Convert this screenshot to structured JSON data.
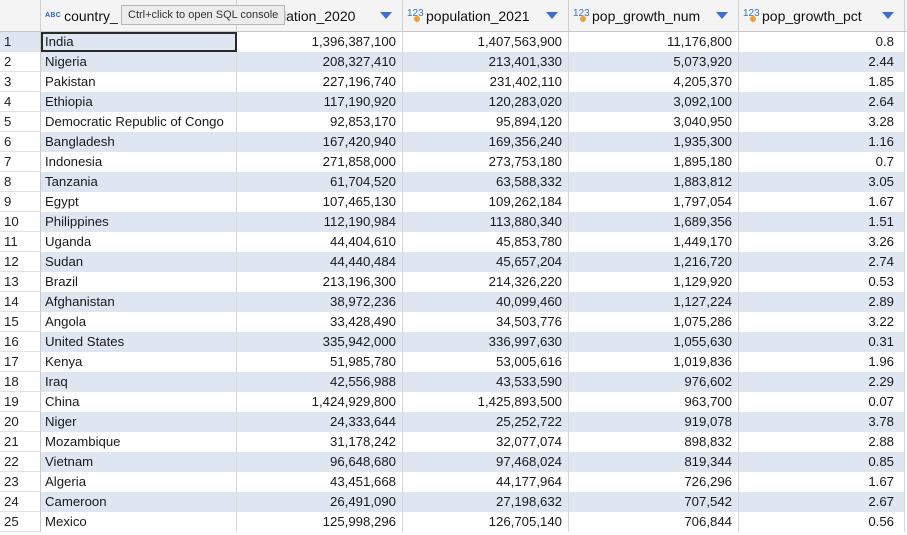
{
  "header": {
    "columns": [
      {
        "name": "country_name",
        "display": "country_",
        "type_badge": "ABC"
      },
      {
        "name": "population_2020",
        "display": "population_2020",
        "type_badge": "123"
      },
      {
        "name": "population_2021",
        "display": "population_2021",
        "type_badge": "123"
      },
      {
        "name": "pop_growth_num",
        "display": "pop_growth_num",
        "type_badge": "123"
      },
      {
        "name": "pop_growth_pct",
        "display": "pop_growth_pct",
        "type_badge": "123"
      }
    ],
    "col2_visible": "lation_2020"
  },
  "tooltip": "Ctrl+click to open SQL console",
  "rows": [
    {
      "n": "1",
      "country": "India",
      "p20": "1,396,387,100",
      "p21": "1,407,563,900",
      "gnum": "11,176,800",
      "gpct": "0.8"
    },
    {
      "n": "2",
      "country": "Nigeria",
      "p20": "208,327,410",
      "p21": "213,401,330",
      "gnum": "5,073,920",
      "gpct": "2.44"
    },
    {
      "n": "3",
      "country": "Pakistan",
      "p20": "227,196,740",
      "p21": "231,402,110",
      "gnum": "4,205,370",
      "gpct": "1.85"
    },
    {
      "n": "4",
      "country": "Ethiopia",
      "p20": "117,190,920",
      "p21": "120,283,020",
      "gnum": "3,092,100",
      "gpct": "2.64"
    },
    {
      "n": "5",
      "country": "Democratic Republic of Congo",
      "p20": "92,853,170",
      "p21": "95,894,120",
      "gnum": "3,040,950",
      "gpct": "3.28"
    },
    {
      "n": "6",
      "country": "Bangladesh",
      "p20": "167,420,940",
      "p21": "169,356,240",
      "gnum": "1,935,300",
      "gpct": "1.16"
    },
    {
      "n": "7",
      "country": "Indonesia",
      "p20": "271,858,000",
      "p21": "273,753,180",
      "gnum": "1,895,180",
      "gpct": "0.7"
    },
    {
      "n": "8",
      "country": "Tanzania",
      "p20": "61,704,520",
      "p21": "63,588,332",
      "gnum": "1,883,812",
      "gpct": "3.05"
    },
    {
      "n": "9",
      "country": "Egypt",
      "p20": "107,465,130",
      "p21": "109,262,184",
      "gnum": "1,797,054",
      "gpct": "1.67"
    },
    {
      "n": "10",
      "country": "Philippines",
      "p20": "112,190,984",
      "p21": "113,880,340",
      "gnum": "1,689,356",
      "gpct": "1.51"
    },
    {
      "n": "11",
      "country": "Uganda",
      "p20": "44,404,610",
      "p21": "45,853,780",
      "gnum": "1,449,170",
      "gpct": "3.26"
    },
    {
      "n": "12",
      "country": "Sudan",
      "p20": "44,440,484",
      "p21": "45,657,204",
      "gnum": "1,216,720",
      "gpct": "2.74"
    },
    {
      "n": "13",
      "country": "Brazil",
      "p20": "213,196,300",
      "p21": "214,326,220",
      "gnum": "1,129,920",
      "gpct": "0.53"
    },
    {
      "n": "14",
      "country": "Afghanistan",
      "p20": "38,972,236",
      "p21": "40,099,460",
      "gnum": "1,127,224",
      "gpct": "2.89"
    },
    {
      "n": "15",
      "country": "Angola",
      "p20": "33,428,490",
      "p21": "34,503,776",
      "gnum": "1,075,286",
      "gpct": "3.22"
    },
    {
      "n": "16",
      "country": "United States",
      "p20": "335,942,000",
      "p21": "336,997,630",
      "gnum": "1,055,630",
      "gpct": "0.31"
    },
    {
      "n": "17",
      "country": "Kenya",
      "p20": "51,985,780",
      "p21": "53,005,616",
      "gnum": "1,019,836",
      "gpct": "1.96"
    },
    {
      "n": "18",
      "country": "Iraq",
      "p20": "42,556,988",
      "p21": "43,533,590",
      "gnum": "976,602",
      "gpct": "2.29"
    },
    {
      "n": "19",
      "country": "China",
      "p20": "1,424,929,800",
      "p21": "1,425,893,500",
      "gnum": "963,700",
      "gpct": "0.07"
    },
    {
      "n": "20",
      "country": "Niger",
      "p20": "24,333,644",
      "p21": "25,252,722",
      "gnum": "919,078",
      "gpct": "3.78"
    },
    {
      "n": "21",
      "country": "Mozambique",
      "p20": "31,178,242",
      "p21": "32,077,074",
      "gnum": "898,832",
      "gpct": "2.88"
    },
    {
      "n": "22",
      "country": "Vietnam",
      "p20": "96,648,680",
      "p21": "97,468,024",
      "gnum": "819,344",
      "gpct": "0.85"
    },
    {
      "n": "23",
      "country": "Algeria",
      "p20": "43,451,668",
      "p21": "44,177,964",
      "gnum": "726,296",
      "gpct": "1.67"
    },
    {
      "n": "24",
      "country": "Cameroon",
      "p20": "26,491,090",
      "p21": "27,198,632",
      "gnum": "707,542",
      "gpct": "2.67"
    },
    {
      "n": "25",
      "country": "Mexico",
      "p20": "125,998,296",
      "p21": "126,705,140",
      "gnum": "706,844",
      "gpct": "0.56"
    }
  ],
  "selected_row": 1,
  "colors": {
    "row_alt": "#dde6f1",
    "header_bg": "#f4f4f4",
    "type_icon": "#2a64c8",
    "type_dot": "#f0a030"
  }
}
